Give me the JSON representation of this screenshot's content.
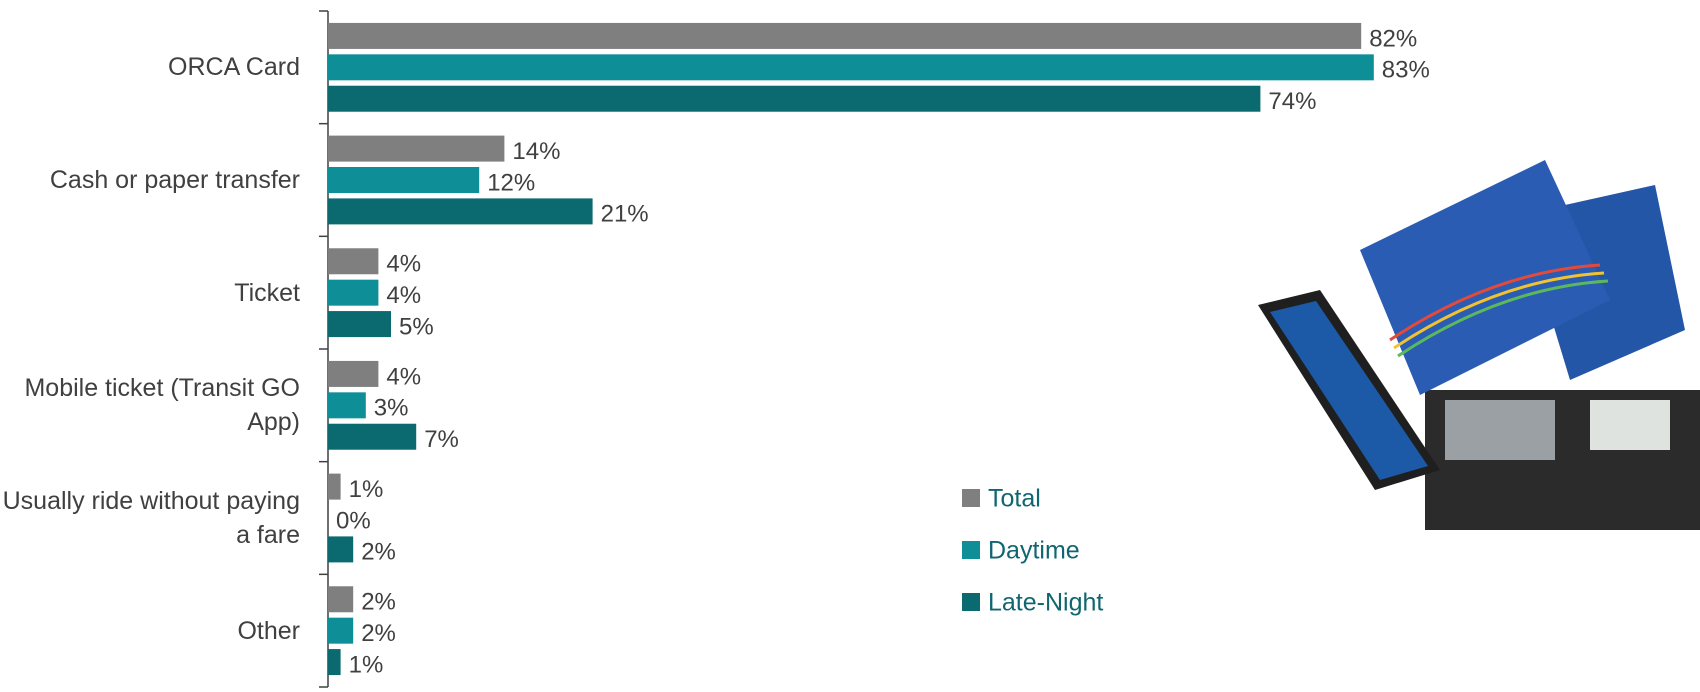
{
  "chart_data": {
    "type": "bar",
    "orientation": "horizontal",
    "categories": [
      "ORCA Card",
      "Cash or paper transfer",
      "Ticket",
      "Mobile ticket (Transit GO App)",
      "Usually ride without paying a fare",
      "Other"
    ],
    "series": [
      {
        "name": "Total",
        "color": "#7f7f7f",
        "values": [
          82,
          14,
          4,
          4,
          1,
          2
        ],
        "value_labels": [
          "82%",
          "14%",
          "4%",
          "4%",
          "1%",
          "2%"
        ]
      },
      {
        "name": "Daytime",
        "color": "#0e8f98",
        "values": [
          83,
          12,
          4,
          3,
          0,
          2
        ],
        "value_labels": [
          "83%",
          "12%",
          "4%",
          "3%",
          "0%",
          "2%"
        ]
      },
      {
        "name": "Late-Night",
        "color": "#0b6a70",
        "values": [
          74,
          21,
          5,
          7,
          2,
          1
        ],
        "value_labels": [
          "74%",
          "21%",
          "5%",
          "7%",
          "2%",
          "1%"
        ]
      }
    ],
    "legend": "right"
  }
}
